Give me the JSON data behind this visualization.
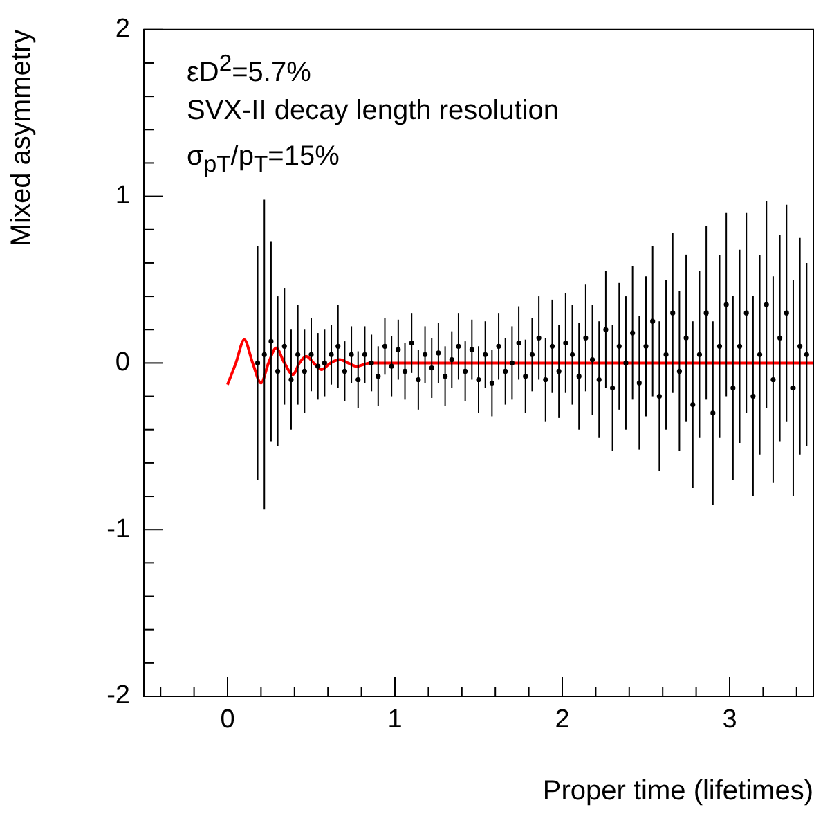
{
  "chart_data": {
    "type": "scatter",
    "xlabel": "Proper time (lifetimes)",
    "ylabel": "Mixed asymmetry",
    "annotations": [
      "εD$^{2}$=5.7%",
      "SVX-II decay length resolution",
      "σ$_{pT}$/p$_{T}$=15%"
    ],
    "xlim": [
      -0.5,
      3.5
    ],
    "ylim": [
      -2,
      2
    ],
    "xticks": [
      {
        "value": -0.4,
        "label": null
      },
      {
        "value": -0.2,
        "label": null
      },
      0,
      {
        "value": 0.2,
        "label": null
      },
      {
        "value": 0.4,
        "label": null
      },
      {
        "value": 0.6,
        "label": null
      },
      {
        "value": 0.8,
        "label": null
      },
      1,
      {
        "value": 1.2,
        "label": null
      },
      {
        "value": 1.4,
        "label": null
      },
      {
        "value": 1.6,
        "label": null
      },
      {
        "value": 1.8,
        "label": null
      },
      2,
      {
        "value": 2.2,
        "label": null
      },
      {
        "value": 2.4,
        "label": null
      },
      {
        "value": 2.6,
        "label": null
      },
      {
        "value": 2.8,
        "label": null
      },
      3,
      {
        "value": 3.2,
        "label": null
      },
      {
        "value": 3.4,
        "label": null
      }
    ],
    "yticks": [
      -2,
      {
        "value": -1.8,
        "label": null
      },
      {
        "value": -1.6,
        "label": null
      },
      {
        "value": -1.4,
        "label": null
      },
      {
        "value": -1.2,
        "label": null
      },
      -1,
      {
        "value": -0.8,
        "label": null
      },
      {
        "value": -0.6,
        "label": null
      },
      {
        "value": -0.4,
        "label": null
      },
      {
        "value": -0.2,
        "label": null
      },
      0,
      {
        "value": 0.2,
        "label": null
      },
      {
        "value": 0.4,
        "label": null
      },
      {
        "value": 0.6,
        "label": null
      },
      {
        "value": 0.8,
        "label": null
      },
      1,
      {
        "value": 1.2,
        "label": null
      },
      {
        "value": 1.4,
        "label": null
      },
      {
        "value": 1.6,
        "label": null
      },
      {
        "value": 1.8,
        "label": null
      },
      2
    ],
    "series": [
      {
        "type": "scatter",
        "color": "#000000",
        "marker": "circle",
        "x": [
          0.18,
          0.22,
          0.26,
          0.3,
          0.34,
          0.38,
          0.42,
          0.46,
          0.5,
          0.54,
          0.58,
          0.62,
          0.66,
          0.7,
          0.74,
          0.78,
          0.82,
          0.86,
          0.9,
          0.94,
          0.98,
          1.02,
          1.06,
          1.1,
          1.14,
          1.18,
          1.22,
          1.26,
          1.3,
          1.34,
          1.38,
          1.42,
          1.46,
          1.5,
          1.54,
          1.58,
          1.62,
          1.66,
          1.7,
          1.74,
          1.78,
          1.82,
          1.86,
          1.9,
          1.94,
          1.98,
          2.02,
          2.06,
          2.1,
          2.14,
          2.18,
          2.22,
          2.26,
          2.3,
          2.34,
          2.38,
          2.42,
          2.46,
          2.5,
          2.54,
          2.58,
          2.62,
          2.66,
          2.7,
          2.74,
          2.78,
          2.82,
          2.86,
          2.9,
          2.94,
          2.98,
          3.02,
          3.06,
          3.1,
          3.14,
          3.18,
          3.22,
          3.26,
          3.3,
          3.34,
          3.38,
          3.42,
          3.46
        ],
        "values": [
          0,
          0.05,
          0.13,
          -0.05,
          0.1,
          -0.1,
          0.05,
          -0.05,
          0.05,
          -0.02,
          0,
          0.05,
          0.1,
          -0.05,
          0.05,
          -0.1,
          0.05,
          0,
          -0.08,
          0.1,
          -0.02,
          0.08,
          -0.05,
          0.12,
          -0.1,
          0.05,
          -0.03,
          0.06,
          -0.08,
          0.02,
          0.1,
          -0.05,
          0.08,
          -0.1,
          0.05,
          -0.12,
          0.1,
          -0.05,
          0,
          0.12,
          -0.08,
          0.05,
          0.15,
          -0.1,
          0.1,
          -0.05,
          0.12,
          0.05,
          -0.08,
          0.15,
          0.02,
          -0.1,
          0.2,
          -0.15,
          0.1,
          0,
          0.18,
          -0.12,
          0.1,
          0.25,
          -0.2,
          0.05,
          0.3,
          -0.05,
          0.15,
          -0.25,
          0.05,
          0.3,
          -0.3,
          0.1,
          0.35,
          -0.15,
          0.1,
          0.3,
          -0.2,
          0.05,
          0.35,
          -0.1,
          0.15,
          0.3,
          -0.15,
          0.1,
          0.05
        ],
        "errors": [
          0.7,
          0.93,
          0.6,
          0.45,
          0.35,
          0.3,
          0.3,
          0.25,
          0.22,
          0.2,
          0.2,
          0.18,
          0.25,
          0.18,
          0.17,
          0.17,
          0.17,
          0.17,
          0.18,
          0.17,
          0.18,
          0.18,
          0.17,
          0.18,
          0.18,
          0.17,
          0.18,
          0.18,
          0.18,
          0.17,
          0.2,
          0.18,
          0.18,
          0.2,
          0.2,
          0.2,
          0.2,
          0.2,
          0.22,
          0.22,
          0.22,
          0.22,
          0.25,
          0.25,
          0.28,
          0.28,
          0.3,
          0.3,
          0.32,
          0.32,
          0.33,
          0.35,
          0.35,
          0.38,
          0.38,
          0.4,
          0.4,
          0.4,
          0.42,
          0.45,
          0.45,
          0.45,
          0.48,
          0.48,
          0.5,
          0.5,
          0.5,
          0.52,
          0.55,
          0.55,
          0.55,
          0.55,
          0.58,
          0.6,
          0.6,
          0.6,
          0.62,
          0.62,
          0.62,
          0.65,
          0.65,
          0.65,
          0.55
        ]
      },
      {
        "type": "line",
        "color": "#ff0000",
        "marker": "none",
        "line_style": "solid",
        "x": [
          0,
          0.05,
          0.1,
          0.15,
          0.2,
          0.245,
          0.29,
          0.34,
          0.39,
          0.43,
          0.47,
          0.515,
          0.56,
          0.615,
          0.67,
          0.72,
          0.77,
          0.85,
          3.5
        ],
        "values": [
          -0.13,
          0,
          0.14,
          0,
          -0.12,
          0,
          0.09,
          0,
          -0.07,
          0,
          0.04,
          0,
          -0.04,
          0,
          0.02,
          0,
          -0.02,
          0,
          0
        ]
      }
    ]
  }
}
